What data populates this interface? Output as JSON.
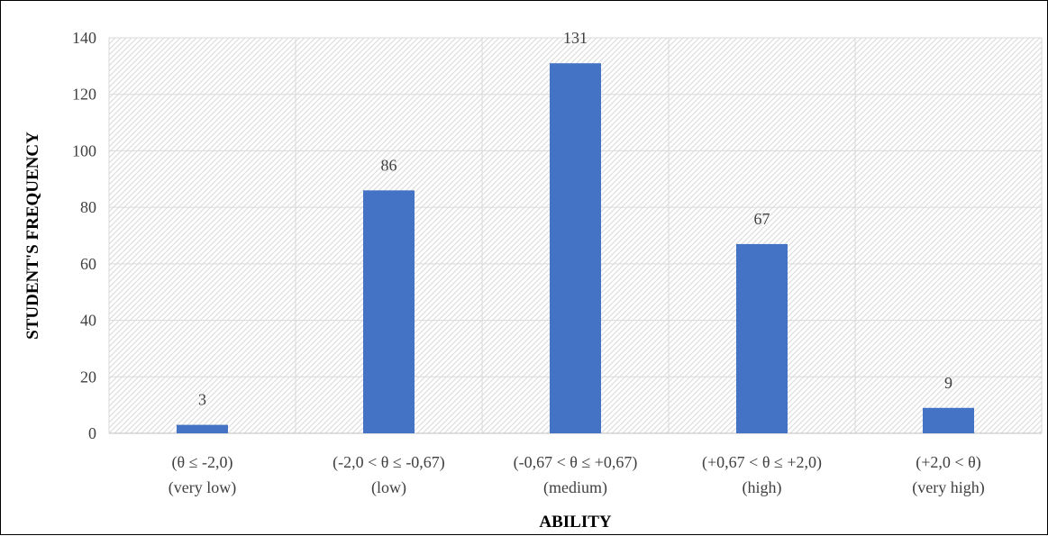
{
  "chart_data": {
    "type": "bar",
    "categories": [
      [
        "(θ ≤ -2,0)",
        "(very low)"
      ],
      [
        "(-2,0 < θ ≤ -0,67)",
        "(low)"
      ],
      [
        "(-0,67 < θ ≤ +0,67)",
        "(medium)"
      ],
      [
        "(+0,67 < θ ≤ +2,0)",
        "(high)"
      ],
      [
        "(+2,0 < θ)",
        "(very high)"
      ]
    ],
    "values": [
      3,
      86,
      131,
      67,
      9
    ],
    "xlabel": "ABILITY",
    "ylabel": "STUDENT'S FREQUENCY",
    "ylim": [
      0,
      140
    ],
    "yticks": [
      0,
      20,
      40,
      60,
      80,
      100,
      120,
      140
    ],
    "grid": true,
    "data_labels": true,
    "bar_color": "#4472C4"
  }
}
